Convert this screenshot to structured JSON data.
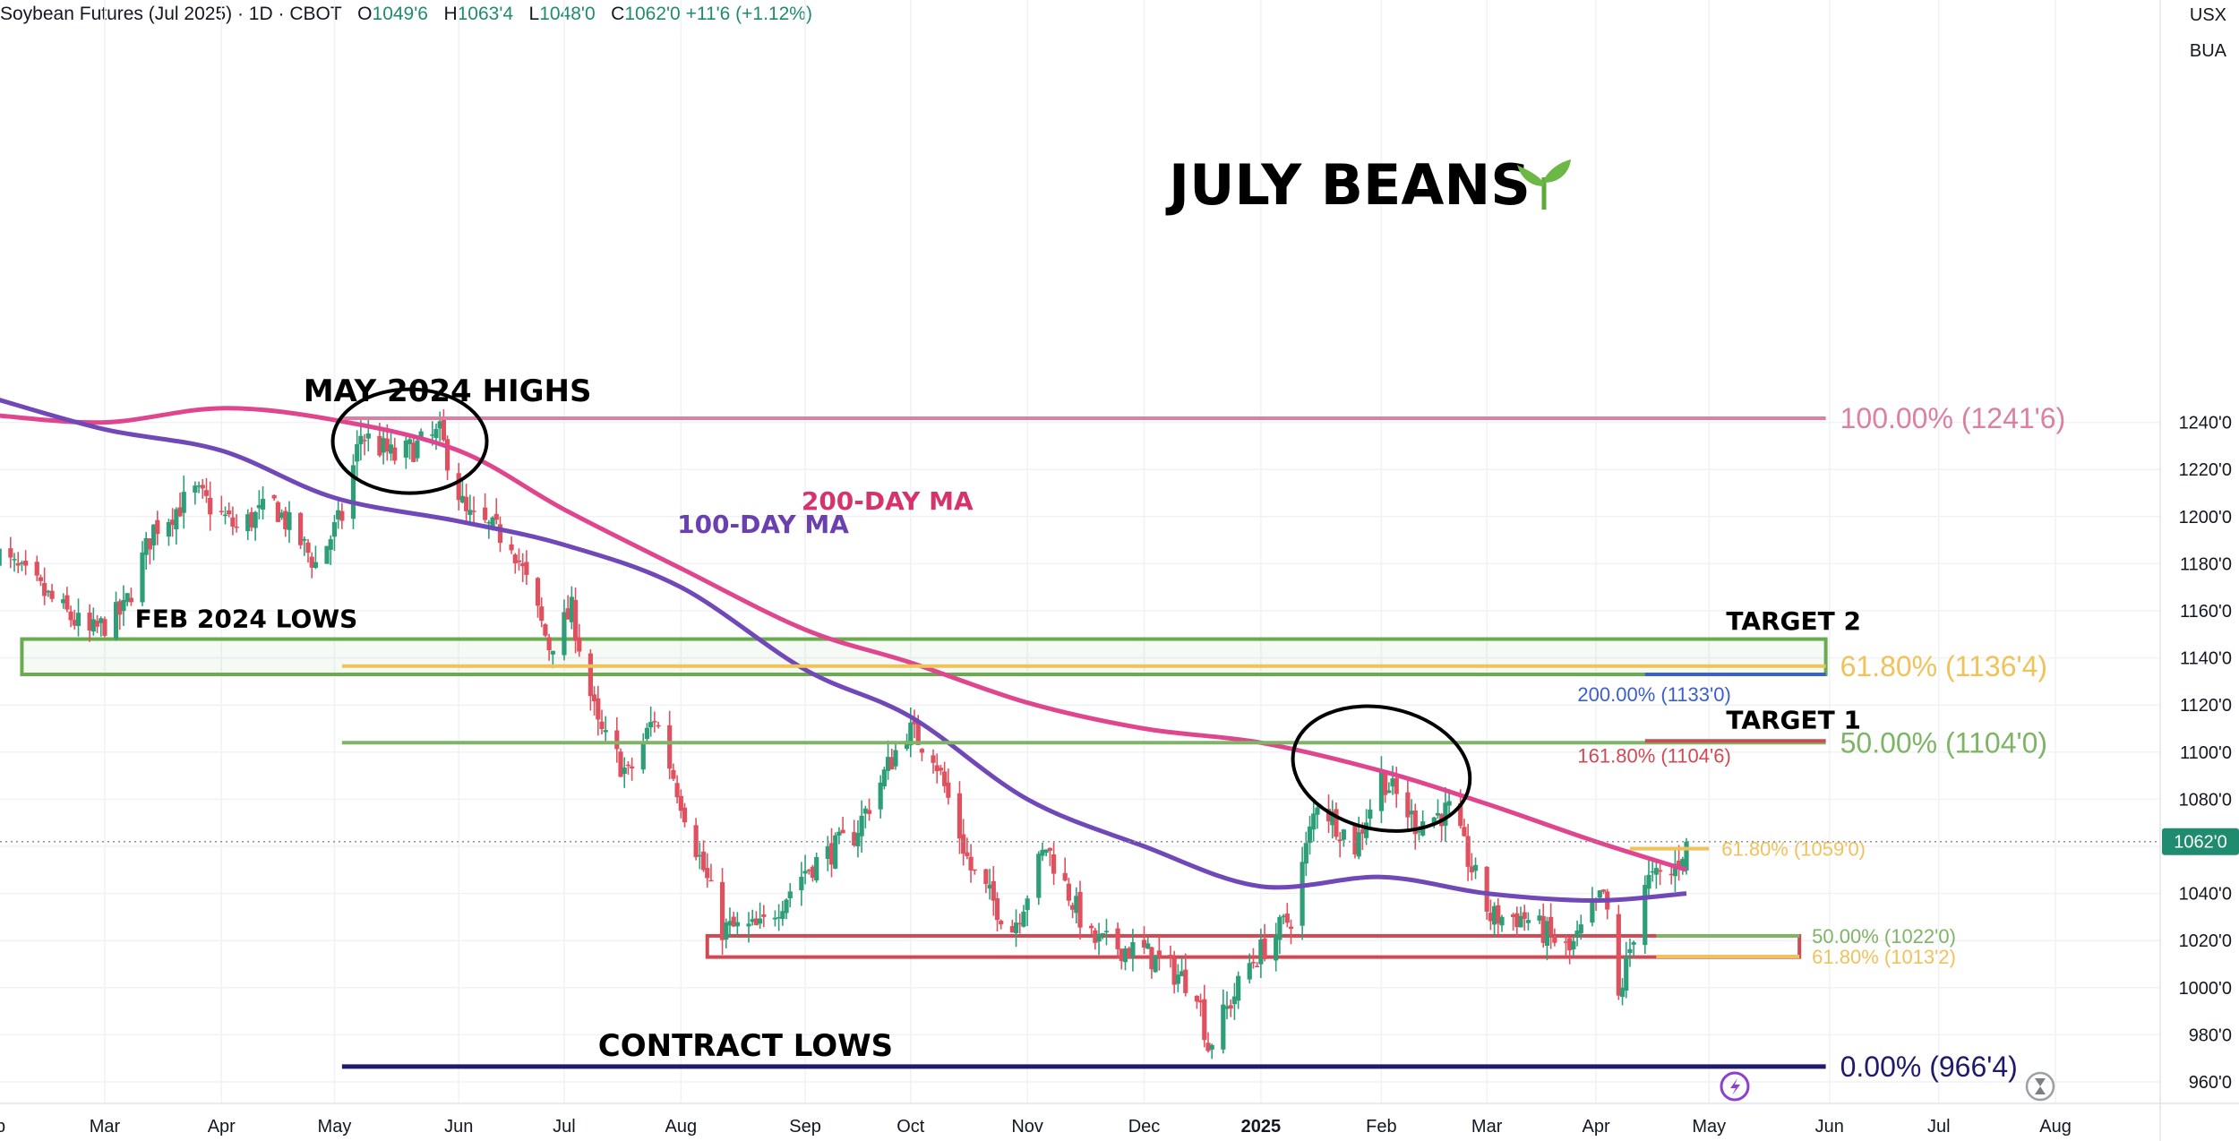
{
  "legend": {
    "symbol": "Soybean Futures (Jul 2025) · 1D · CBOT",
    "open_label": "O",
    "open": "1049'6",
    "high_label": "H",
    "high": "1063'4",
    "low_label": "L",
    "low": "1048'0",
    "close_label": "C",
    "close": "1062'0",
    "change": "+11'6 (+1.12%)"
  },
  "corner": {
    "currency": "USX",
    "unit": "BUA"
  },
  "colors": {
    "up": "#2e9e79",
    "down": "#e0515f",
    "ma100": "#7048b8",
    "ma200": "#e0468e",
    "green_level": "#7db565",
    "yellow_level": "#f0c25a",
    "red_level": "#cf4a52",
    "navy_level": "#1f1a6b",
    "blue_level": "#3a5fcf",
    "price_badge": "#1f8b6f"
  },
  "icons": {
    "bottom_left": "lightning-icon",
    "bottom_right": "hourglass-icon"
  },
  "chart_data": {
    "type": "candlestick",
    "title": "JULY BEANS",
    "title_icon": "seedling-icon",
    "price_unit": "cents/bu",
    "ylim": [
      957,
      1254
    ],
    "y_ticks": [
      960,
      980,
      1000,
      1020,
      1040,
      1060,
      1080,
      1100,
      1120,
      1140,
      1160,
      1180,
      1200,
      1220,
      1240
    ],
    "y_tick_labels": [
      "960'0",
      "980'0",
      "1000'0",
      "1020'0",
      "1040'0",
      "1060'0",
      "1080'0",
      "1100'0",
      "1120'0",
      "1140'0",
      "1160'0",
      "1180'0",
      "1200'0",
      "1220'0",
      "1240'0"
    ],
    "x_range": [
      "2024-02-01",
      "2025-08-20"
    ],
    "x_ticks": [
      {
        "date": "2024-02-01",
        "label": "eb"
      },
      {
        "date": "2024-03-01",
        "label": "Mar"
      },
      {
        "date": "2024-04-01",
        "label": "Apr"
      },
      {
        "date": "2024-05-01",
        "label": "May"
      },
      {
        "date": "2024-06-03",
        "label": "Jun"
      },
      {
        "date": "2024-07-01",
        "label": "Jul"
      },
      {
        "date": "2024-08-01",
        "label": "Aug"
      },
      {
        "date": "2024-09-03",
        "label": "Sep"
      },
      {
        "date": "2024-10-01",
        "label": "Oct"
      },
      {
        "date": "2024-11-01",
        "label": "Nov"
      },
      {
        "date": "2024-12-02",
        "label": "Dec"
      },
      {
        "date": "2025-01-02",
        "label": "2025"
      },
      {
        "date": "2025-02-03",
        "label": "Feb"
      },
      {
        "date": "2025-03-03",
        "label": "Mar"
      },
      {
        "date": "2025-04-01",
        "label": "Apr"
      },
      {
        "date": "2025-05-01",
        "label": "May"
      },
      {
        "date": "2025-06-02",
        "label": "Jun"
      },
      {
        "date": "2025-07-01",
        "label": "Jul"
      },
      {
        "date": "2025-08-01",
        "label": "Aug"
      }
    ],
    "last_price": 1062,
    "last_price_label": "1062'0",
    "close_path": [
      {
        "date": "2024-02-01",
        "close": 1185
      },
      {
        "date": "2024-02-12",
        "close": 1170
      },
      {
        "date": "2024-02-26",
        "close": 1150
      },
      {
        "date": "2024-03-06",
        "close": 1160
      },
      {
        "date": "2024-03-14",
        "close": 1195
      },
      {
        "date": "2024-03-25",
        "close": 1210
      },
      {
        "date": "2024-04-05",
        "close": 1195
      },
      {
        "date": "2024-04-15",
        "close": 1205
      },
      {
        "date": "2024-04-26",
        "close": 1180
      },
      {
        "date": "2024-05-03",
        "close": 1200
      },
      {
        "date": "2024-05-08",
        "close": 1235
      },
      {
        "date": "2024-05-17",
        "close": 1225
      },
      {
        "date": "2024-05-29",
        "close": 1235
      },
      {
        "date": "2024-06-05",
        "close": 1200
      },
      {
        "date": "2024-06-17",
        "close": 1190
      },
      {
        "date": "2024-06-27",
        "close": 1145
      },
      {
        "date": "2024-07-03",
        "close": 1160
      },
      {
        "date": "2024-07-10",
        "close": 1110
      },
      {
        "date": "2024-07-18",
        "close": 1090
      },
      {
        "date": "2024-07-25",
        "close": 1115
      },
      {
        "date": "2024-08-02",
        "close": 1075
      },
      {
        "date": "2024-08-12",
        "close": 1025
      },
      {
        "date": "2024-08-22",
        "close": 1025
      },
      {
        "date": "2024-09-03",
        "close": 1050
      },
      {
        "date": "2024-09-16",
        "close": 1065
      },
      {
        "date": "2024-09-30",
        "close": 1110
      },
      {
        "date": "2024-10-07",
        "close": 1100
      },
      {
        "date": "2024-10-17",
        "close": 1050
      },
      {
        "date": "2024-10-28",
        "close": 1025
      },
      {
        "date": "2024-11-06",
        "close": 1060
      },
      {
        "date": "2024-11-18",
        "close": 1020
      },
      {
        "date": "2024-12-02",
        "close": 1015
      },
      {
        "date": "2024-12-16",
        "close": 1000
      },
      {
        "date": "2024-12-19",
        "close": 975
      },
      {
        "date": "2024-12-30",
        "close": 1010
      },
      {
        "date": "2025-01-10",
        "close": 1030
      },
      {
        "date": "2025-01-17",
        "close": 1080
      },
      {
        "date": "2025-01-27",
        "close": 1060
      },
      {
        "date": "2025-02-03",
        "close": 1090
      },
      {
        "date": "2025-02-12",
        "close": 1070
      },
      {
        "date": "2025-02-21",
        "close": 1075
      },
      {
        "date": "2025-03-04",
        "close": 1030
      },
      {
        "date": "2025-03-13",
        "close": 1030
      },
      {
        "date": "2025-03-25",
        "close": 1015
      },
      {
        "date": "2025-04-03",
        "close": 1040
      },
      {
        "date": "2025-04-07",
        "close": 995
      },
      {
        "date": "2025-04-14",
        "close": 1045
      },
      {
        "date": "2025-04-21",
        "close": 1048
      },
      {
        "date": "2025-04-25",
        "close": 1062
      }
    ],
    "ma100": [
      {
        "date": "2024-02-01",
        "value": 1250
      },
      {
        "date": "2024-03-01",
        "value": 1237
      },
      {
        "date": "2024-04-01",
        "value": 1228
      },
      {
        "date": "2024-05-01",
        "value": 1208
      },
      {
        "date": "2024-06-03",
        "value": 1198
      },
      {
        "date": "2024-07-01",
        "value": 1188
      },
      {
        "date": "2024-08-01",
        "value": 1170
      },
      {
        "date": "2024-09-03",
        "value": 1135
      },
      {
        "date": "2024-10-01",
        "value": 1115
      },
      {
        "date": "2024-11-01",
        "value": 1080
      },
      {
        "date": "2024-12-02",
        "value": 1060
      },
      {
        "date": "2025-01-02",
        "value": 1043
      },
      {
        "date": "2025-02-03",
        "value": 1047
      },
      {
        "date": "2025-03-03",
        "value": 1040
      },
      {
        "date": "2025-04-01",
        "value": 1037
      },
      {
        "date": "2025-04-25",
        "value": 1040
      }
    ],
    "ma200": [
      {
        "date": "2024-02-01",
        "value": 1243
      },
      {
        "date": "2024-03-01",
        "value": 1240
      },
      {
        "date": "2024-04-01",
        "value": 1246
      },
      {
        "date": "2024-05-01",
        "value": 1241
      },
      {
        "date": "2024-06-03",
        "value": 1228
      },
      {
        "date": "2024-07-01",
        "value": 1203
      },
      {
        "date": "2024-08-01",
        "value": 1178
      },
      {
        "date": "2024-09-03",
        "value": 1152
      },
      {
        "date": "2024-10-01",
        "value": 1138
      },
      {
        "date": "2024-11-01",
        "value": 1121
      },
      {
        "date": "2024-12-02",
        "value": 1110
      },
      {
        "date": "2025-01-02",
        "value": 1104
      },
      {
        "date": "2025-02-03",
        "value": 1092
      },
      {
        "date": "2025-03-03",
        "value": 1078
      },
      {
        "date": "2025-04-01",
        "value": 1062
      },
      {
        "date": "2025-04-25",
        "value": 1050
      }
    ],
    "series_labels": {
      "ma100": "100-DAY MA",
      "ma200": "200-DAY MA"
    },
    "levels": [
      {
        "name": "may-2024-high",
        "price": 1241.75,
        "from": "2024-05-03",
        "to": "2025-06-01",
        "color": "#db7fa3",
        "label": "100.00% (1241'6)",
        "label_size": "large"
      },
      {
        "name": "fib-61-8-upper",
        "price": 1136.5,
        "from": "2024-05-03",
        "to": "2025-06-01",
        "color": "#f0c25a",
        "label": "61.80% (1136'4)",
        "label_size": "large"
      },
      {
        "name": "ext-200",
        "price": 1133,
        "from": "2025-04-14",
        "to": "2025-06-01",
        "color": "#3a5fcf",
        "label": "200.00% (1133'0)",
        "label_size": "small"
      },
      {
        "name": "fib-50-upper",
        "price": 1104,
        "from": "2024-05-03",
        "to": "2025-06-01",
        "color": "#7db565",
        "label": "50.00% (1104'0)",
        "label_size": "large"
      },
      {
        "name": "ext-161-8",
        "price": 1104.75,
        "from": "2025-04-14",
        "to": "2025-06-01",
        "color": "#cf4a52",
        "label": "161.80% (1104'6)",
        "label_size": "small"
      },
      {
        "name": "fib-61-8-near",
        "price": 1059,
        "from": "2025-04-10",
        "to": "2025-05-01",
        "color": "#f0c25a",
        "label": "61.80% (1059'0)",
        "label_size": "small"
      },
      {
        "name": "fib-50-lower",
        "price": 1022,
        "from": "2025-04-17",
        "to": "2025-05-25",
        "color": "#7db565",
        "label": "50.00% (1022'0)",
        "label_size": "small"
      },
      {
        "name": "fib-61-8-lower",
        "price": 1013.25,
        "from": "2025-04-17",
        "to": "2025-05-25",
        "color": "#f0c25a",
        "label": "61.80% (1013'2)",
        "label_size": "small"
      },
      {
        "name": "contract-low",
        "price": 966.5,
        "from": "2024-05-03",
        "to": "2025-06-01",
        "color": "#1f1a6b",
        "label": "0.00% (966'4)",
        "label_size": "large"
      }
    ],
    "zones": [
      {
        "name": "feb-2024-lows",
        "from": "2024-02-08",
        "to": "2025-06-01",
        "low": 1133,
        "high": 1148,
        "color": "#6aab4f"
      },
      {
        "name": "support-box",
        "from": "2024-08-08",
        "to": "2025-05-25",
        "low": 1013,
        "high": 1022,
        "color": "#cf4a52"
      }
    ],
    "annotations": [
      {
        "name": "may-2024-highs",
        "text": "MAY 2024 HIGHS",
        "date": "2024-05-31",
        "price": 1249,
        "size": "large"
      },
      {
        "name": "feb-2024-lows",
        "text": "FEB 2024 LOWS",
        "date": "2024-03-09",
        "price": 1153,
        "size": "medium"
      },
      {
        "name": "target-2",
        "text": "TARGET 2",
        "date": "2025-05-10",
        "price": 1152,
        "size": "medium"
      },
      {
        "name": "target-1",
        "text": "TARGET 1",
        "date": "2025-05-10",
        "price": 1110,
        "size": "medium"
      },
      {
        "name": "contract-lows",
        "text": "CONTRACT LOWS",
        "date": "2024-07-10",
        "price": 971,
        "size": "large"
      },
      {
        "name": "ma200-label",
        "text": "200-DAY MA",
        "date": "2024-09-02",
        "price": 1203,
        "size": "ma",
        "color": "#d6336c"
      },
      {
        "name": "ma100-label",
        "text": "100-DAY MA",
        "date": "2024-07-31",
        "price": 1193,
        "size": "ma",
        "color": "#6a3fb0"
      }
    ],
    "ellipses": [
      {
        "name": "may-highs-ellipse",
        "date": "2024-05-21",
        "price": 1232
      },
      {
        "name": "feb-2025-ellipse",
        "date": "2025-02-03",
        "price": 1093
      }
    ]
  }
}
